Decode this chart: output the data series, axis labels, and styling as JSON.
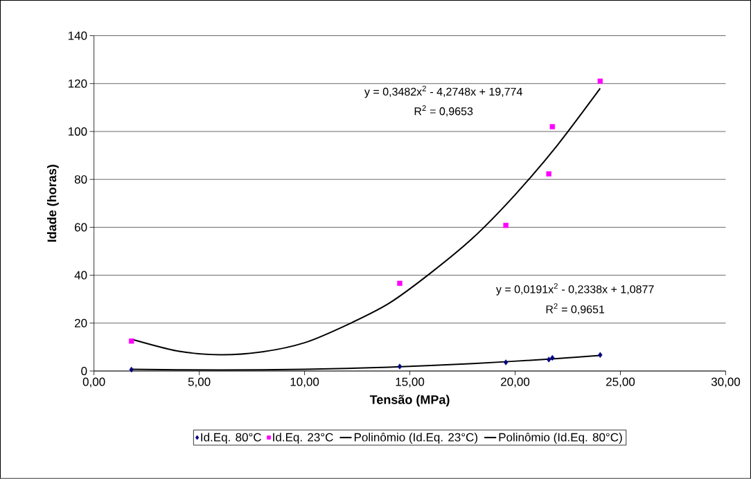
{
  "chart_data": {
    "type": "scatter",
    "xlabel": "Tensão (MPa)",
    "ylabel": "Idade (horas)",
    "xlim": [
      0,
      30
    ],
    "ylim": [
      0,
      140
    ],
    "xticks": [
      {
        "value": 0,
        "label": "0,00"
      },
      {
        "value": 5,
        "label": "5,00"
      },
      {
        "value": 10,
        "label": "10,00"
      },
      {
        "value": 15,
        "label": "15,00"
      },
      {
        "value": 20,
        "label": "20,00"
      },
      {
        "value": 25,
        "label": "25,00"
      },
      {
        "value": 30,
        "label": "30,00"
      }
    ],
    "yticks": [
      0,
      20,
      40,
      60,
      80,
      100,
      120,
      140
    ],
    "grid": "y",
    "legend": "bottom",
    "series": [
      {
        "name": "Id.Eq. 80°C",
        "color": "#000080",
        "marker": "diamond",
        "x": [
          1.78,
          14.52,
          19.56,
          21.6,
          21.77,
          24.04
        ],
        "values": [
          0.6,
          1.9,
          3.6,
          4.8,
          5.5,
          6.7
        ]
      },
      {
        "name": "Id.Eq. 23°C",
        "color": "#ff00ff",
        "marker": "square",
        "x": [
          1.78,
          14.52,
          19.56,
          21.6,
          21.77,
          24.04
        ],
        "values": [
          12.5,
          36.6,
          60.8,
          82.3,
          102,
          121
        ]
      },
      {
        "name": "Polinômio (Id.Eq. 23°C)",
        "type": "line",
        "color": "#000000",
        "marker": "none",
        "x": [
          1.78,
          4,
          6,
          8,
          10,
          12,
          14,
          16,
          18,
          20,
          22,
          24.04
        ],
        "values": [
          13.3,
          8.3,
          6.8,
          8.0,
          11.8,
          19.2,
          28.2,
          41.0,
          55.6,
          73.6,
          94.2,
          118
        ]
      },
      {
        "name": "Polinômio (Id.Eq. 80°C)",
        "type": "line",
        "color": "#000000",
        "marker": "none",
        "x": [
          1.78,
          6,
          10,
          14,
          18,
          22,
          24.04
        ],
        "values": [
          0.7,
          0.4,
          0.7,
          1.6,
          3.1,
          5.2,
          6.5
        ]
      }
    ],
    "annotations": [
      "y = 0,3482x$^{2}$ - 4,2748x + 19,774",
      "R$^{2}$ = 0,9653",
      "y = 0,0191x$^{2}$ - 0,2338x + 1,0877",
      "R$^{2}$ = 0,9651"
    ]
  }
}
